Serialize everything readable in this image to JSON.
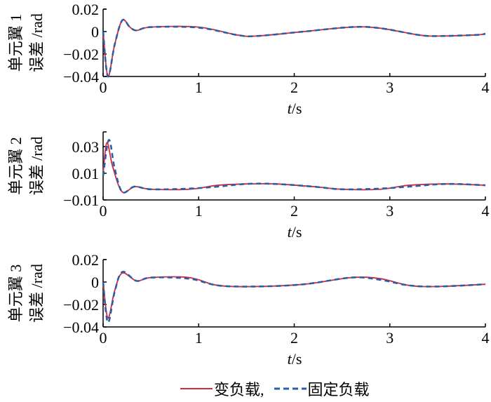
{
  "chart_data": [
    {
      "type": "line",
      "ylabel_line1": "单元翼 1",
      "ylabel_line2": "误差 /rad",
      "xlabel_italic": "t",
      "xlabel_unit": "/s",
      "xlim": [
        0,
        4
      ],
      "ylim": [
        -0.04,
        0.02
      ],
      "xticks": [
        "0",
        "1",
        "2",
        "3",
        "4"
      ],
      "yticks": [
        0.02,
        0,
        -0.02,
        -0.04
      ],
      "ytick_labels": [
        "0.02",
        "0",
        "−0.02",
        "−0.04"
      ],
      "series": [
        {
          "name": "变负载",
          "x": [
            0,
            0.05,
            0.12,
            0.2,
            0.28,
            0.35,
            0.5,
            1.0,
            1.4,
            1.6,
            2.1,
            2.6,
            2.9,
            3.3,
            3.5,
            3.9,
            4.0
          ],
          "y": [
            0,
            -0.04,
            -0.012,
            0.01,
            0.004,
            0.001,
            0.004,
            0.004,
            -0.003,
            -0.004,
            0,
            0.004,
            0.003,
            -0.003,
            -0.004,
            -0.003,
            -0.002
          ]
        },
        {
          "name": "固定负载",
          "x": [
            0,
            0.05,
            0.12,
            0.2,
            0.28,
            0.35,
            0.5,
            1.0,
            1.4,
            1.6,
            2.1,
            2.6,
            2.9,
            3.3,
            3.5,
            3.9,
            4.0
          ],
          "y": [
            0,
            -0.04,
            -0.012,
            0.01,
            0.004,
            0.001,
            0.004,
            0.0035,
            -0.003,
            -0.004,
            0,
            0.004,
            0.003,
            -0.003,
            -0.004,
            -0.003,
            -0.002
          ]
        }
      ]
    },
    {
      "type": "line",
      "ylabel_line1": "单元翼 2",
      "ylabel_line2": "误差 /rad",
      "xlabel_italic": "t",
      "xlabel_unit": "/s",
      "xlim": [
        0,
        4
      ],
      "ylim": [
        -0.01,
        0.041
      ],
      "xticks": [
        "0",
        "1",
        "2",
        "3",
        "4"
      ],
      "yticks": [
        0.03,
        0.01,
        -0.01
      ],
      "ytick_labels": [
        "0.03",
        "0.01",
        "−0.01"
      ],
      "series": [
        {
          "name": "变负载",
          "x": [
            0,
            0.04,
            0.1,
            0.2,
            0.33,
            0.5,
            0.9,
            1.2,
            1.5,
            1.8,
            2.2,
            2.5,
            2.9,
            3.2,
            3.6,
            4.0
          ],
          "y": [
            0.01,
            0.033,
            0.015,
            -0.004,
            0.0,
            -0.002,
            -0.002,
            0.001,
            0.002,
            0.002,
            0,
            -0.002,
            -0.002,
            0.001,
            0.002,
            0.001
          ]
        },
        {
          "name": "固定负载",
          "x": [
            0,
            0.06,
            0.12,
            0.2,
            0.33,
            0.5,
            0.9,
            1.2,
            1.5,
            1.8,
            2.2,
            2.5,
            2.9,
            3.2,
            3.6,
            4.0
          ],
          "y": [
            0.008,
            0.035,
            0.014,
            -0.004,
            0.0,
            -0.002,
            -0.0015,
            0.0,
            0.002,
            0.002,
            0,
            -0.002,
            -0.0015,
            0.0,
            0.002,
            0.001
          ]
        }
      ]
    },
    {
      "type": "line",
      "ylabel_line1": "单元翼 3",
      "ylabel_line2": "误差 /rad",
      "xlabel_italic": "t",
      "xlabel_unit": "/s",
      "xlim": [
        0,
        4
      ],
      "ylim": [
        -0.04,
        0.02
      ],
      "xticks": [
        "0",
        "1",
        "2",
        "3",
        "4"
      ],
      "yticks": [
        0.02,
        0,
        -0.02,
        -0.04
      ],
      "ytick_labels": [
        "0.02",
        "0",
        "−0.02",
        "−0.04"
      ],
      "series": [
        {
          "name": "变负载",
          "x": [
            0,
            0.05,
            0.12,
            0.2,
            0.35,
            0.5,
            0.9,
            1.2,
            1.6,
            2.1,
            2.6,
            2.9,
            3.2,
            3.5,
            4.0
          ],
          "y": [
            0,
            -0.032,
            -0.008,
            0.008,
            0.001,
            0.004,
            0.004,
            -0.003,
            -0.004,
            -0.002,
            0.004,
            0.003,
            -0.003,
            -0.004,
            -0.002
          ]
        },
        {
          "name": "固定负载",
          "x": [
            0,
            0.05,
            0.12,
            0.2,
            0.35,
            0.5,
            0.9,
            1.2,
            1.6,
            2.1,
            2.6,
            2.9,
            3.2,
            3.5,
            4.0
          ],
          "y": [
            0,
            -0.036,
            -0.009,
            0.009,
            0.001,
            0.004,
            0.003,
            -0.003,
            -0.004,
            -0.002,
            0.004,
            0.002,
            -0.003,
            -0.004,
            -0.002
          ]
        }
      ]
    }
  ],
  "legend": {
    "placement": "bottom-center",
    "items": [
      {
        "label": "变负载,",
        "style": "solid",
        "color": "#d42a3c"
      },
      {
        "label": "固定负载",
        "style": "dashed",
        "color": "#2a5ca8"
      }
    ]
  }
}
